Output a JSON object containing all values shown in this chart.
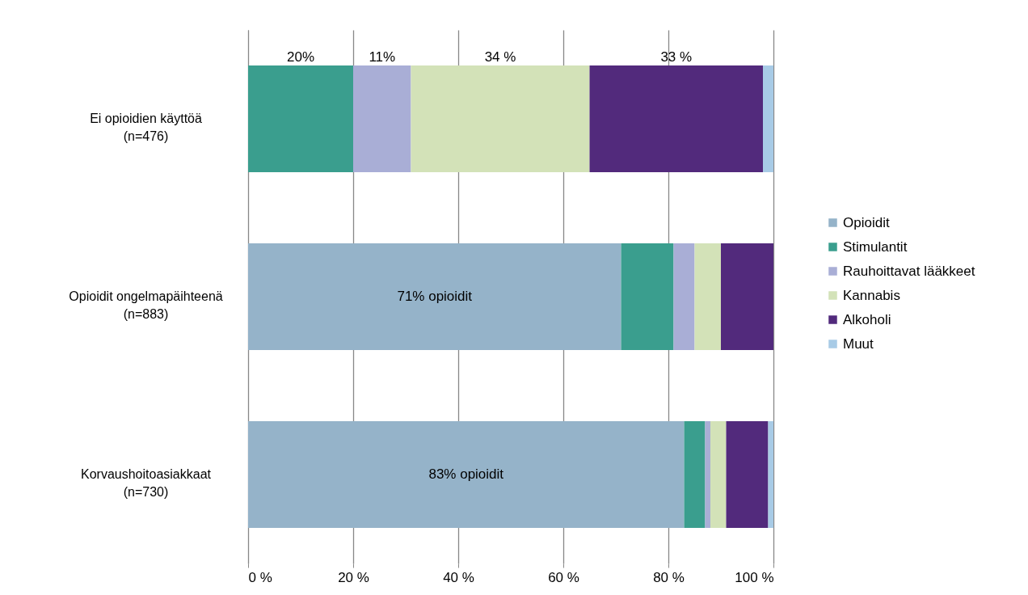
{
  "chart_data": {
    "type": "bar",
    "orientation": "horizontal",
    "stacked": true,
    "categories": [
      "Ei opioidien käyttöä (n=476)",
      "Opioidit  ongelmapäihteenä (n=883)",
      "Korvaushoitoasiakkaat (n=730)"
    ],
    "series": [
      {
        "name": "Opioidit",
        "color": "#95b3c9",
        "values": [
          0,
          71,
          83
        ],
        "value_labels": [
          null,
          "71% opioidit",
          "83% opioidit"
        ]
      },
      {
        "name": "Stimulantit",
        "color": "#3a9e8e",
        "values": [
          20,
          10,
          4
        ],
        "value_labels": [
          "20%",
          null,
          null
        ]
      },
      {
        "name": "Rauhoittavat lääkkeet",
        "color": "#a9aed6",
        "values": [
          11,
          4,
          1
        ],
        "value_labels": [
          "11%",
          null,
          null
        ]
      },
      {
        "name": "Kannabis",
        "color": "#d3e2b8",
        "values": [
          34,
          5,
          3
        ],
        "value_labels": [
          "34 %",
          null,
          null
        ]
      },
      {
        "name": "Alkoholi",
        "color": "#522a7c",
        "values": [
          33,
          10,
          8
        ],
        "value_labels": [
          "33 %",
          null,
          null
        ]
      },
      {
        "name": "Muut",
        "color": "#a8cbe6",
        "values": [
          2,
          0,
          1
        ]
      }
    ],
    "xlim": [
      0,
      100
    ],
    "xticks": [
      {
        "value": 0,
        "label": "0 %"
      },
      {
        "value": 20,
        "label": "20 %"
      },
      {
        "value": 40,
        "label": "40 %"
      },
      {
        "value": 60,
        "label": "60 %"
      },
      {
        "value": 80,
        "label": "80 %"
      },
      {
        "value": 100,
        "label": "100 %"
      }
    ],
    "grid": "x",
    "legend": "right"
  }
}
